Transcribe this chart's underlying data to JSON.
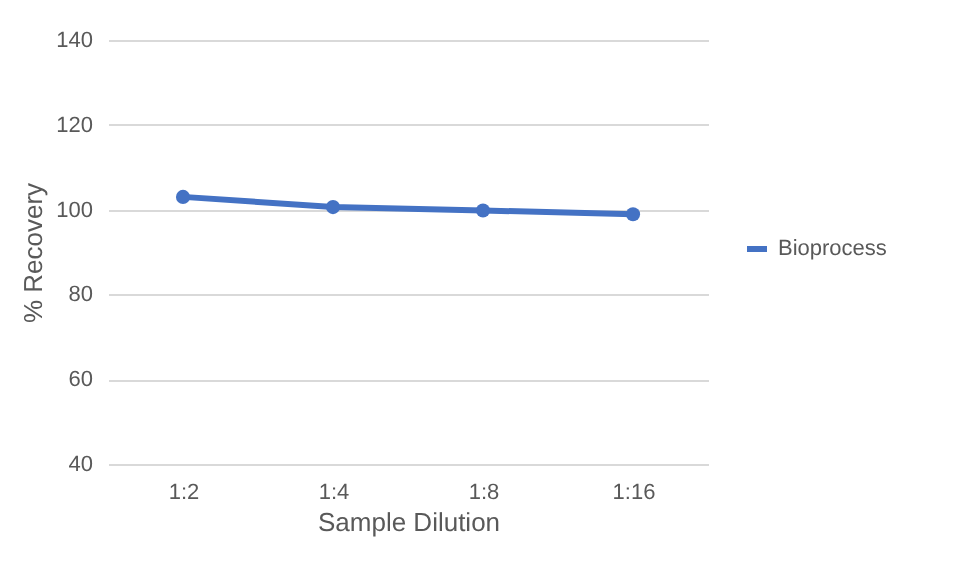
{
  "chart_data": {
    "type": "line",
    "xlabel": "Sample Dilution",
    "ylabel": "% Recovery",
    "categories": [
      "1:2",
      "1:4",
      "1:8",
      "1:16"
    ],
    "series": [
      {
        "name": "Bioprocess",
        "color": "#4472c4",
        "values": [
          103.0,
          100.6,
          99.8,
          98.9
        ]
      }
    ],
    "ylim": [
      40,
      140
    ],
    "yticks": [
      40,
      60,
      80,
      100,
      120,
      140
    ],
    "grid": "y",
    "legend": "right",
    "marker": "circle",
    "line_style": "solid"
  }
}
